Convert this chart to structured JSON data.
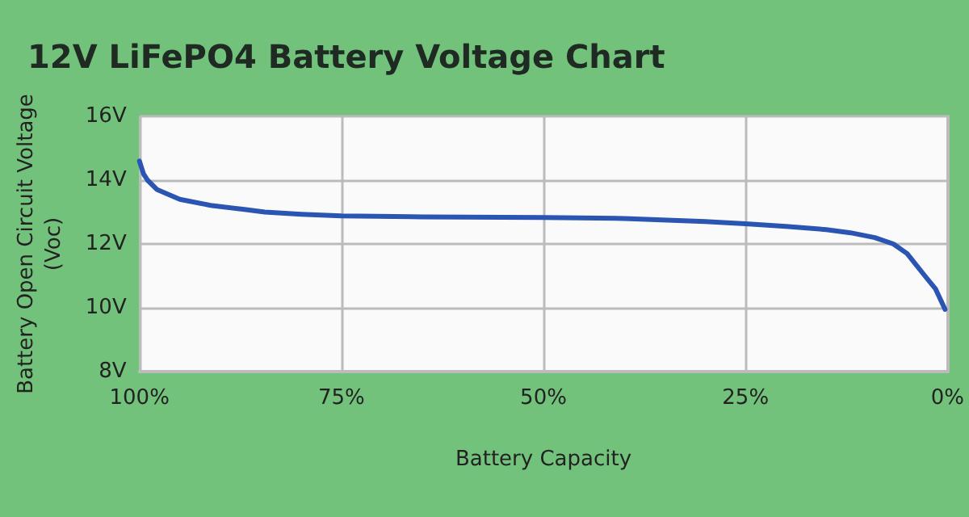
{
  "chart_data": {
    "type": "line",
    "title": "12V LiFePO4 Battery Voltage Chart",
    "xlabel": "Battery Capacity",
    "ylabel": "Battery Open Circuit Voltage (Voc)",
    "x": [
      100,
      99.5,
      99,
      97.8,
      95,
      91,
      87,
      84.5,
      80,
      75,
      65,
      50,
      40,
      30,
      25,
      20,
      15,
      12,
      9,
      6.7,
      5,
      2.8,
      1.5,
      0.3
    ],
    "series": [
      {
        "color": "#2b55b3",
        "values": [
          14.6,
          14.2,
          14.0,
          13.7,
          13.4,
          13.2,
          13.08,
          13.0,
          12.93,
          12.88,
          12.85,
          12.83,
          12.8,
          12.7,
          12.63,
          12.55,
          12.45,
          12.35,
          12.2,
          12.0,
          11.7,
          11.0,
          10.6,
          9.95
        ]
      }
    ],
    "xlim": [
      100,
      0
    ],
    "xticks": [
      {
        "value": 100,
        "label": "100%"
      },
      {
        "value": 75,
        "label": "75%"
      },
      {
        "value": 50,
        "label": "50%"
      },
      {
        "value": 25,
        "label": "25%"
      },
      {
        "value": 0,
        "label": "0%"
      }
    ],
    "ylim": [
      8,
      16
    ],
    "yticks": [
      {
        "value": 8,
        "label": "8V"
      },
      {
        "value": 10,
        "label": "10V"
      },
      {
        "value": 12,
        "label": "12V"
      },
      {
        "value": 14,
        "label": "14V"
      },
      {
        "value": 16,
        "label": "16V"
      }
    ],
    "grid": true,
    "line_style": "solid"
  }
}
